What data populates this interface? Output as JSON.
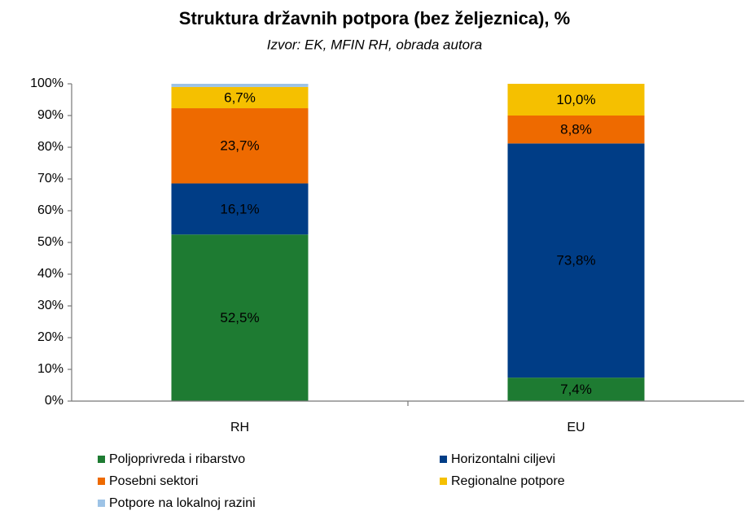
{
  "chart_data": {
    "type": "stacked_bar",
    "title": "Struktura državnih potpora (bez željeznica), %",
    "subtitle": "Izvor: EK, MFIN RH, obrada autora",
    "categories": [
      "RH",
      "EU"
    ],
    "series": [
      {
        "name": "Poljoprivreda i ribarstvo",
        "color": "#1e7b32",
        "values": [
          52.5,
          7.4
        ],
        "value_labels": [
          "52,5%",
          "7,4%"
        ]
      },
      {
        "name": "Horizontalni ciljevi",
        "color": "#003d86",
        "values": [
          16.1,
          73.8
        ],
        "value_labels": [
          "16,1%",
          "73,8%"
        ]
      },
      {
        "name": "Posebni sektori",
        "color": "#ee6a00",
        "values": [
          23.7,
          8.8
        ],
        "value_labels": [
          "23,7%",
          "8,8%"
        ]
      },
      {
        "name": "Regionalne potpore",
        "color": "#f5c000",
        "values": [
          6.7,
          10.0
        ],
        "value_labels": [
          "6,7%",
          "10,0%"
        ]
      },
      {
        "name": "Potpore na lokalnoj razini",
        "color": "#9dc3e6",
        "values": [
          1.0,
          0
        ]
      }
    ],
    "ylim": [
      0,
      100
    ],
    "yticks": [
      {
        "value": 0,
        "label": "0%"
      },
      {
        "value": 10,
        "label": "10%"
      },
      {
        "value": 20,
        "label": "20%"
      },
      {
        "value": 30,
        "label": "30%"
      },
      {
        "value": 40,
        "label": "40%"
      },
      {
        "value": 50,
        "label": "50%"
      },
      {
        "value": 60,
        "label": "60%"
      },
      {
        "value": 70,
        "label": "70%"
      },
      {
        "value": 80,
        "label": "80%"
      },
      {
        "value": 90,
        "label": "90%"
      },
      {
        "value": 100,
        "label": "100%"
      }
    ]
  }
}
